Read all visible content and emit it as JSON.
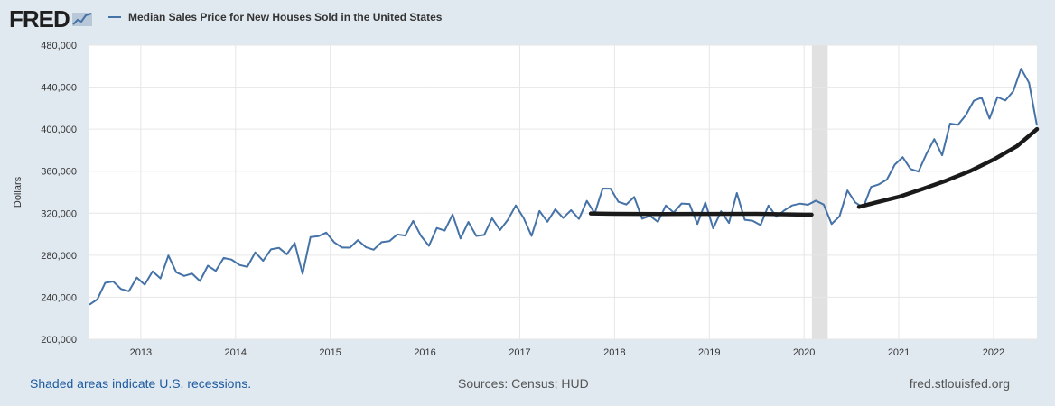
{
  "header": {
    "logo_text": "FRED",
    "series_title": "Median Sales Price for New Houses Sold in the United States"
  },
  "footer": {
    "recession_note": "Shaded areas indicate U.S. recessions.",
    "sources": "Sources: Census; HUD",
    "site": "fred.stlouisfed.org"
  },
  "colors": {
    "series": "#4572a7",
    "overlay": "#1a1a1a",
    "recession": "#e1e1e1",
    "background": "#e1e9f0"
  },
  "chart_data": {
    "type": "line",
    "title": "Median Sales Price for New Houses Sold in the United States",
    "xlabel": "",
    "ylabel": "Dollars",
    "xlim": [
      2012.458,
      2022.458
    ],
    "ylim": [
      200000,
      480000
    ],
    "yticks": [
      200000,
      240000,
      280000,
      320000,
      360000,
      400000,
      440000,
      480000
    ],
    "ytick_labels": [
      "200,000",
      "240,000",
      "280,000",
      "320,000",
      "360,000",
      "400,000",
      "440,000",
      "480,000"
    ],
    "xticks": [
      2013,
      2014,
      2015,
      2016,
      2017,
      2018,
      2019,
      2020,
      2021,
      2022
    ],
    "xtick_labels": [
      "2013",
      "2014",
      "2015",
      "2016",
      "2017",
      "2018",
      "2019",
      "2020",
      "2021",
      "2022"
    ],
    "grid": true,
    "recessions": [
      {
        "start": 2020.083,
        "end": 2020.25
      }
    ],
    "series": [
      {
        "name": "Median Sales Price for New Houses Sold in the United States",
        "x_start": 2012.458,
        "x_step": 0.08333,
        "values": [
          232900,
          238000,
          253700,
          255000,
          247800,
          245700,
          258700,
          252000,
          264600,
          257900,
          279700,
          263700,
          260300,
          262500,
          255400,
          270000,
          265000,
          277400,
          275800,
          270700,
          268900,
          282700,
          274700,
          285600,
          287000,
          280900,
          291600,
          262300,
          297300,
          298100,
          301500,
          292300,
          287300,
          287200,
          294400,
          287700,
          285200,
          292400,
          293400,
          299800,
          298700,
          312600,
          298300,
          288900,
          305900,
          303400,
          318800,
          295900,
          311600,
          298300,
          299300,
          315200,
          303900,
          313700,
          327400,
          315300,
          298400,
          322100,
          311800,
          323600,
          315500,
          322900,
          314500,
          331700,
          319800,
          343400,
          343300,
          330800,
          328300,
          335400,
          314700,
          317500,
          311700,
          327300,
          320600,
          329200,
          328700,
          309700,
          330200,
          305600,
          321800,
          310700,
          339200,
          313700,
          312700,
          308600,
          327300,
          316600,
          322600,
          327400,
          329100,
          328000,
          331900,
          328200,
          309700,
          317000,
          341600,
          330200,
          325300,
          345000,
          347500,
          352000,
          366200,
          373300,
          362100,
          359600,
          376300,
          390500,
          375100,
          405300,
          404100,
          413300,
          427000,
          430000,
          410000,
          430500,
          427300,
          436000,
          457500,
          444200,
          403500
        ]
      },
      {
        "name": "Trend overlay 2017-2020",
        "points": [
          [
            2017.75,
            319700
          ],
          [
            2018.0,
            319400
          ],
          [
            2018.5,
            319200
          ],
          [
            2019.0,
            319300
          ],
          [
            2019.5,
            319400
          ],
          [
            2020.0,
            318600
          ],
          [
            2020.08,
            318600
          ]
        ]
      },
      {
        "name": "Trend overlay 2020-2022",
        "points": [
          [
            2020.58,
            326000
          ],
          [
            2020.75,
            330000
          ],
          [
            2021.0,
            335500
          ],
          [
            2021.25,
            343000
          ],
          [
            2021.5,
            351000
          ],
          [
            2021.75,
            360000
          ],
          [
            2022.0,
            371000
          ],
          [
            2022.25,
            384000
          ],
          [
            2022.458,
            400000
          ]
        ]
      }
    ]
  }
}
